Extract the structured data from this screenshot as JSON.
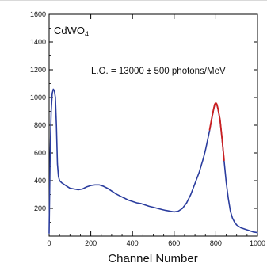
{
  "chart_data": {
    "type": "line",
    "title": "",
    "xlabel": "Channel Number",
    "ylabel": "",
    "xlim": [
      0,
      1000
    ],
    "ylim": [
      0,
      1600
    ],
    "xticks": [
      0,
      200,
      400,
      600,
      800,
      1000
    ],
    "yticks": [
      200,
      400,
      600,
      800,
      1000,
      1200,
      1400,
      1600
    ],
    "grid": false,
    "annotations": [
      {
        "text": "CdWO",
        "subscript": "4"
      },
      {
        "text": "L.O. = 13000 ± 500 photons/MeV"
      }
    ],
    "series": [
      {
        "color": "#2b3d9e",
        "x": [
          0,
          5,
          10,
          15,
          20,
          25,
          30,
          35,
          40,
          45,
          50,
          60,
          70,
          80,
          90,
          100,
          120,
          140,
          160,
          180,
          200,
          220,
          240,
          260,
          280,
          300,
          320,
          340,
          360,
          380,
          400,
          420,
          440,
          460,
          480,
          500,
          520,
          540,
          560,
          580,
          600,
          620,
          640,
          660,
          680,
          700,
          720,
          740,
          750,
          760,
          770,
          780,
          790,
          795,
          800,
          805,
          810,
          820,
          830,
          840,
          850,
          860,
          870,
          880,
          890,
          900,
          920,
          940,
          960,
          980,
          1000
        ],
        "y": [
          20,
          600,
          900,
          1030,
          1060,
          1050,
          1000,
          800,
          520,
          430,
          400,
          385,
          375,
          365,
          355,
          345,
          340,
          335,
          340,
          355,
          365,
          370,
          370,
          360,
          345,
          325,
          305,
          290,
          275,
          260,
          250,
          240,
          235,
          225,
          215,
          208,
          200,
          192,
          185,
          180,
          175,
          180,
          200,
          240,
          300,
          380,
          460,
          560,
          620,
          690,
          760,
          840,
          920,
          950,
          960,
          950,
          920,
          840,
          700,
          540,
          390,
          270,
          180,
          130,
          100,
          80,
          60,
          50,
          40,
          30,
          25
        ]
      },
      {
        "color": "#cc1f1f",
        "x": [
          770,
          780,
          790,
          795,
          800,
          805,
          810,
          820,
          830,
          840
        ],
        "y": [
          765,
          845,
          922,
          952,
          962,
          952,
          922,
          842,
          702,
          545
        ]
      }
    ]
  }
}
